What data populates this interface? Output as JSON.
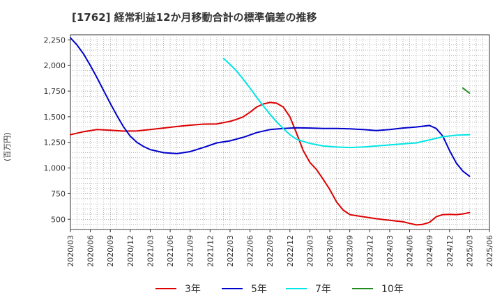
{
  "chart_data": {
    "type": "line",
    "title": "[1762]  経常利益12か月移動合計の標準偏差の推移",
    "ylabel": "(百万円)",
    "xlabel": "",
    "ylim": [
      400,
      2300
    ],
    "yticks": [
      500,
      750,
      1000,
      1250,
      1500,
      1750,
      2000,
      2250
    ],
    "ytick_labels": [
      "500",
      "750",
      "1,000",
      "1,250",
      "1,500",
      "1,750",
      "2,000",
      "2,250"
    ],
    "xticks": [
      "2020/03",
      "2020/06",
      "2020/09",
      "2020/12",
      "2021/03",
      "2021/06",
      "2021/09",
      "2021/12",
      "2022/03",
      "2022/06",
      "2022/09",
      "2022/12",
      "2023/03",
      "2023/06",
      "2023/09",
      "2023/12",
      "2024/03",
      "2024/06",
      "2024/09",
      "2024/12",
      "2025/03",
      "2025/06"
    ],
    "grid": true,
    "legend_position": "bottom",
    "series": [
      {
        "name": "3年",
        "color": "#dd0000",
        "x": [
          "2020/03",
          "2020/05",
          "2020/07",
          "2020/09",
          "2020/11",
          "2021/01",
          "2021/03",
          "2021/05",
          "2021/07",
          "2021/09",
          "2021/11",
          "2022/01",
          "2022/03",
          "2022/04",
          "2022/05",
          "2022/06",
          "2022/07",
          "2022/08",
          "2022/09",
          "2022/10",
          "2022/11",
          "2022/12",
          "2023/01",
          "2023/02",
          "2023/03",
          "2023/04",
          "2023/05",
          "2023/06",
          "2023/07",
          "2023/08",
          "2023/09",
          "2023/11",
          "2024/01",
          "2024/03",
          "2024/05",
          "2024/06",
          "2024/07",
          "2024/08",
          "2024/09",
          "2024/10",
          "2024/11",
          "2024/12",
          "2025/01",
          "2025/02",
          "2025/03"
        ],
        "values": [
          1325,
          1355,
          1375,
          1368,
          1360,
          1362,
          1375,
          1390,
          1405,
          1418,
          1428,
          1430,
          1455,
          1475,
          1500,
          1545,
          1595,
          1625,
          1640,
          1632,
          1595,
          1500,
          1340,
          1170,
          1055,
          985,
          890,
          790,
          670,
          590,
          545,
          525,
          505,
          490,
          475,
          460,
          445,
          450,
          470,
          525,
          545,
          548,
          545,
          552,
          565
        ]
      },
      {
        "name": "5年",
        "color": "#0000cc",
        "x": [
          "2020/03",
          "2020/04",
          "2020/05",
          "2020/06",
          "2020/07",
          "2020/08",
          "2020/09",
          "2020/10",
          "2020/11",
          "2020/12",
          "2021/01",
          "2021/02",
          "2021/03",
          "2021/05",
          "2021/07",
          "2021/09",
          "2021/11",
          "2022/01",
          "2022/03",
          "2022/05",
          "2022/07",
          "2022/09",
          "2022/11",
          "2023/01",
          "2023/03",
          "2023/05",
          "2023/07",
          "2023/09",
          "2023/11",
          "2024/01",
          "2024/03",
          "2024/05",
          "2024/07",
          "2024/09",
          "2024/10",
          "2024/11",
          "2024/12",
          "2025/01",
          "2025/02",
          "2025/03"
        ],
        "values": [
          2270,
          2200,
          2110,
          2000,
          1880,
          1755,
          1630,
          1510,
          1400,
          1310,
          1250,
          1210,
          1180,
          1150,
          1140,
          1160,
          1200,
          1245,
          1265,
          1300,
          1345,
          1375,
          1385,
          1392,
          1390,
          1385,
          1385,
          1382,
          1375,
          1365,
          1375,
          1390,
          1400,
          1415,
          1385,
          1310,
          1170,
          1050,
          970,
          920
        ]
      },
      {
        "name": "7年",
        "color": "#00e5e5",
        "x": [
          "2022/02",
          "2022/03",
          "2022/04",
          "2022/05",
          "2022/06",
          "2022/07",
          "2022/08",
          "2022/09",
          "2022/10",
          "2022/11",
          "2022/12",
          "2023/01",
          "2023/03",
          "2023/05",
          "2023/07",
          "2023/09",
          "2023/11",
          "2024/01",
          "2024/03",
          "2024/05",
          "2024/07",
          "2024/09",
          "2024/11",
          "2025/01",
          "2025/03"
        ],
        "values": [
          2070,
          2010,
          1945,
          1865,
          1780,
          1690,
          1605,
          1525,
          1450,
          1385,
          1325,
          1280,
          1240,
          1215,
          1205,
          1200,
          1205,
          1215,
          1225,
          1235,
          1245,
          1275,
          1305,
          1320,
          1325
        ]
      },
      {
        "name": "10年",
        "color": "#228b22",
        "x": [
          "2025/02",
          "2025/03"
        ],
        "values": [
          1780,
          1730
        ]
      }
    ]
  }
}
